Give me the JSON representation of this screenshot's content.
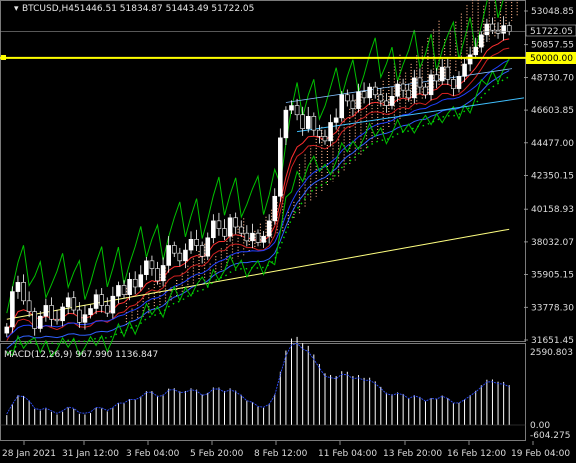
{
  "header": {
    "symbol": "BTCUSD,H4",
    "ohlc": "51446.51 51834.87 51443.49 51722.05"
  },
  "price_axis": {
    "ticks": [
      "53048.85",
      "50857.55",
      "48730.70",
      "46603.85",
      "44477.00",
      "42350.15",
      "40158.93",
      "38032.07",
      "35905.15",
      "33778.30",
      "31651.45"
    ],
    "current_price": "51722.05",
    "level_price": "50000.00"
  },
  "macd": {
    "label": "MACD(12,26,9) 967.990 1136.847",
    "ticks": [
      "2590.803",
      "0.00",
      "-604.275"
    ]
  },
  "time_axis": {
    "ticks": [
      "28 Jan 2021",
      "31 Jan 12:00",
      "3 Feb 04:00",
      "5 Feb 20:00",
      "8 Feb 12:00",
      "11 Feb 04:00",
      "13 Feb 20:00",
      "16 Feb 12:00",
      "19 Feb 04:00"
    ]
  },
  "colors": {
    "background": "#000000",
    "candle_up": "#ffffff",
    "candle_down": "#ffffff",
    "level_line": "#ffff00",
    "ema_fast": "#ff2020",
    "ema_mid": "#2040ff",
    "ema_slow": "#ffff80",
    "envelope": "#00c000",
    "ichimoku_cloud": "#ffb38a",
    "trendline": "#40c0ff",
    "macd_bars": "#ffffff",
    "macd_signal": "#3050ff"
  },
  "chart_data": {
    "type": "candlestick",
    "timeframe": "H4",
    "x_ticks": [
      "28 Jan 2021",
      "31 Jan 12:00",
      "3 Feb 04:00",
      "5 Feb 20:00",
      "8 Feb 12:00",
      "11 Feb 04:00",
      "13 Feb 20:00",
      "16 Feb 12:00",
      "19 Feb 04:00"
    ],
    "ylim": [
      31651.45,
      53048.85
    ],
    "close": [
      32500,
      34800,
      35400,
      34200,
      33500,
      32400,
      33200,
      33900,
      33000,
      32900,
      33800,
      34400,
      33600,
      32800,
      33300,
      33700,
      34600,
      33900,
      33400,
      34500,
      35200,
      34600,
      35600,
      35100,
      35900,
      36800,
      36300,
      35500,
      36500,
      37800,
      37300,
      36800,
      37500,
      38200,
      37800,
      37100,
      38300,
      39400,
      38900,
      38400,
      39600,
      39000,
      38600,
      38100,
      38600,
      38000,
      38400,
      39400,
      41000,
      44800,
      46600,
      46900,
      46300,
      45400,
      46200,
      45300,
      44900,
      44600,
      45800,
      46100,
      47600,
      47200,
      46700,
      47800,
      47400,
      48100,
      47600,
      47200,
      46900,
      47500,
      48300,
      47900,
      47400,
      48700,
      48100,
      47600,
      48900,
      48500,
      49400,
      48600,
      48000,
      48800,
      49600,
      50200,
      50700,
      51500,
      52200,
      51800,
      51600,
      52100,
      51722
    ],
    "level": 50000.0,
    "macd_ylim": [
      -604.275,
      2590.803
    ]
  }
}
